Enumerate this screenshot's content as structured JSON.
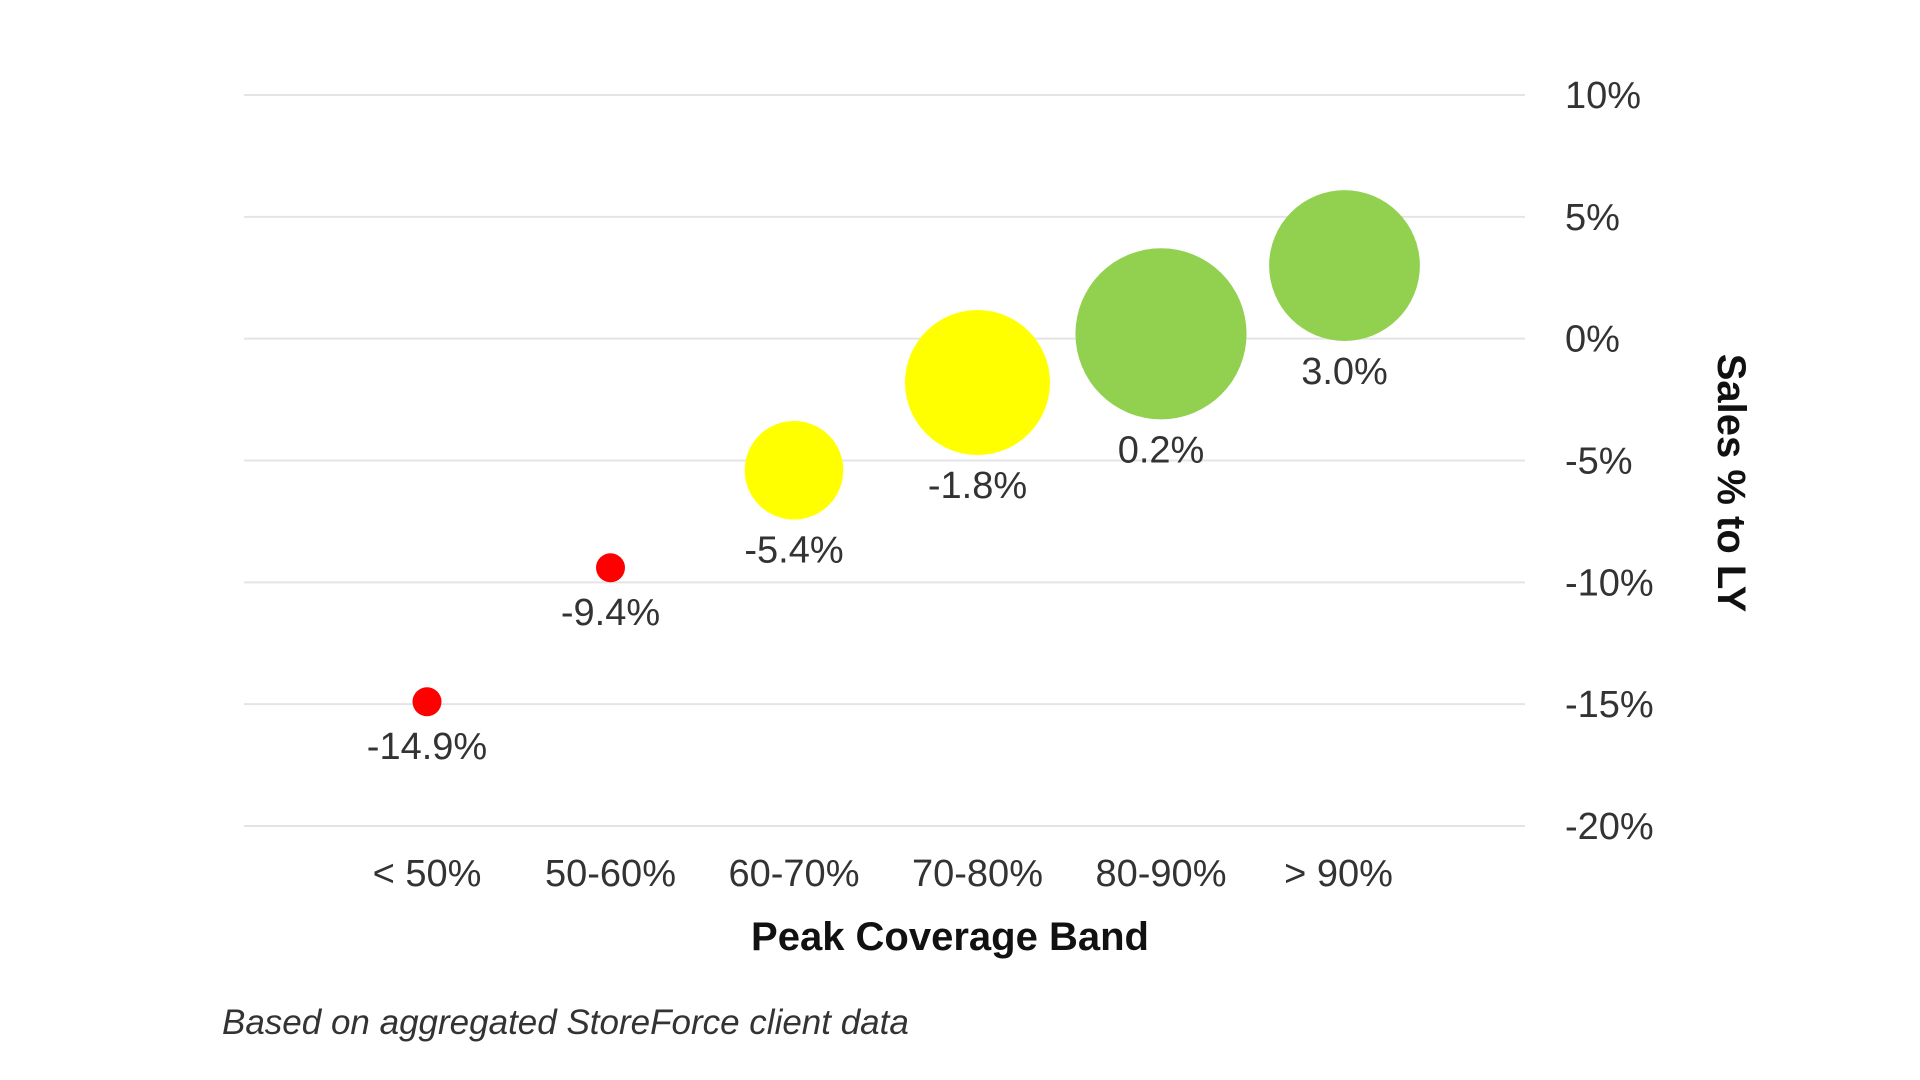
{
  "chart_data": {
    "type": "scatter",
    "xlabel": "Peak Coverage Band",
    "ylabel": "Sales % to LY",
    "ylim": [
      -20,
      10
    ],
    "yticks": [
      10,
      5,
      0,
      -5,
      -10,
      -15,
      -20
    ],
    "ytick_labels": [
      "10%",
      "5%",
      "0%",
      "-5%",
      "-10%",
      "-15%",
      "-20%"
    ],
    "y_axis_position": "right",
    "grid": true,
    "categories": [
      "< 50%",
      "50-60%",
      "60-70%",
      "70-80%",
      "80-90%",
      "> 90%"
    ],
    "points": [
      {
        "x": "< 50%",
        "y": -14.9,
        "label": "-14.9%",
        "color": "#ff0000",
        "size": 1
      },
      {
        "x": "50-60%",
        "y": -9.4,
        "label": "-9.4%",
        "color": "#ff0000",
        "size": 1
      },
      {
        "x": "60-70%",
        "y": -5.4,
        "label": "-5.4%",
        "color": "#ffff00",
        "size": 3.4
      },
      {
        "x": "70-80%",
        "y": -1.8,
        "label": "-1.8%",
        "color": "#ffff00",
        "size": 5
      },
      {
        "x": "80-90%",
        "y": 0.2,
        "label": "0.2%",
        "color": "#92d050",
        "size": 5.9
      },
      {
        "x": "> 90%",
        "y": 3.0,
        "label": "3.0%",
        "color": "#92d050",
        "size": 5.2
      }
    ]
  },
  "footnote": "Based on aggregated StoreForce client data"
}
